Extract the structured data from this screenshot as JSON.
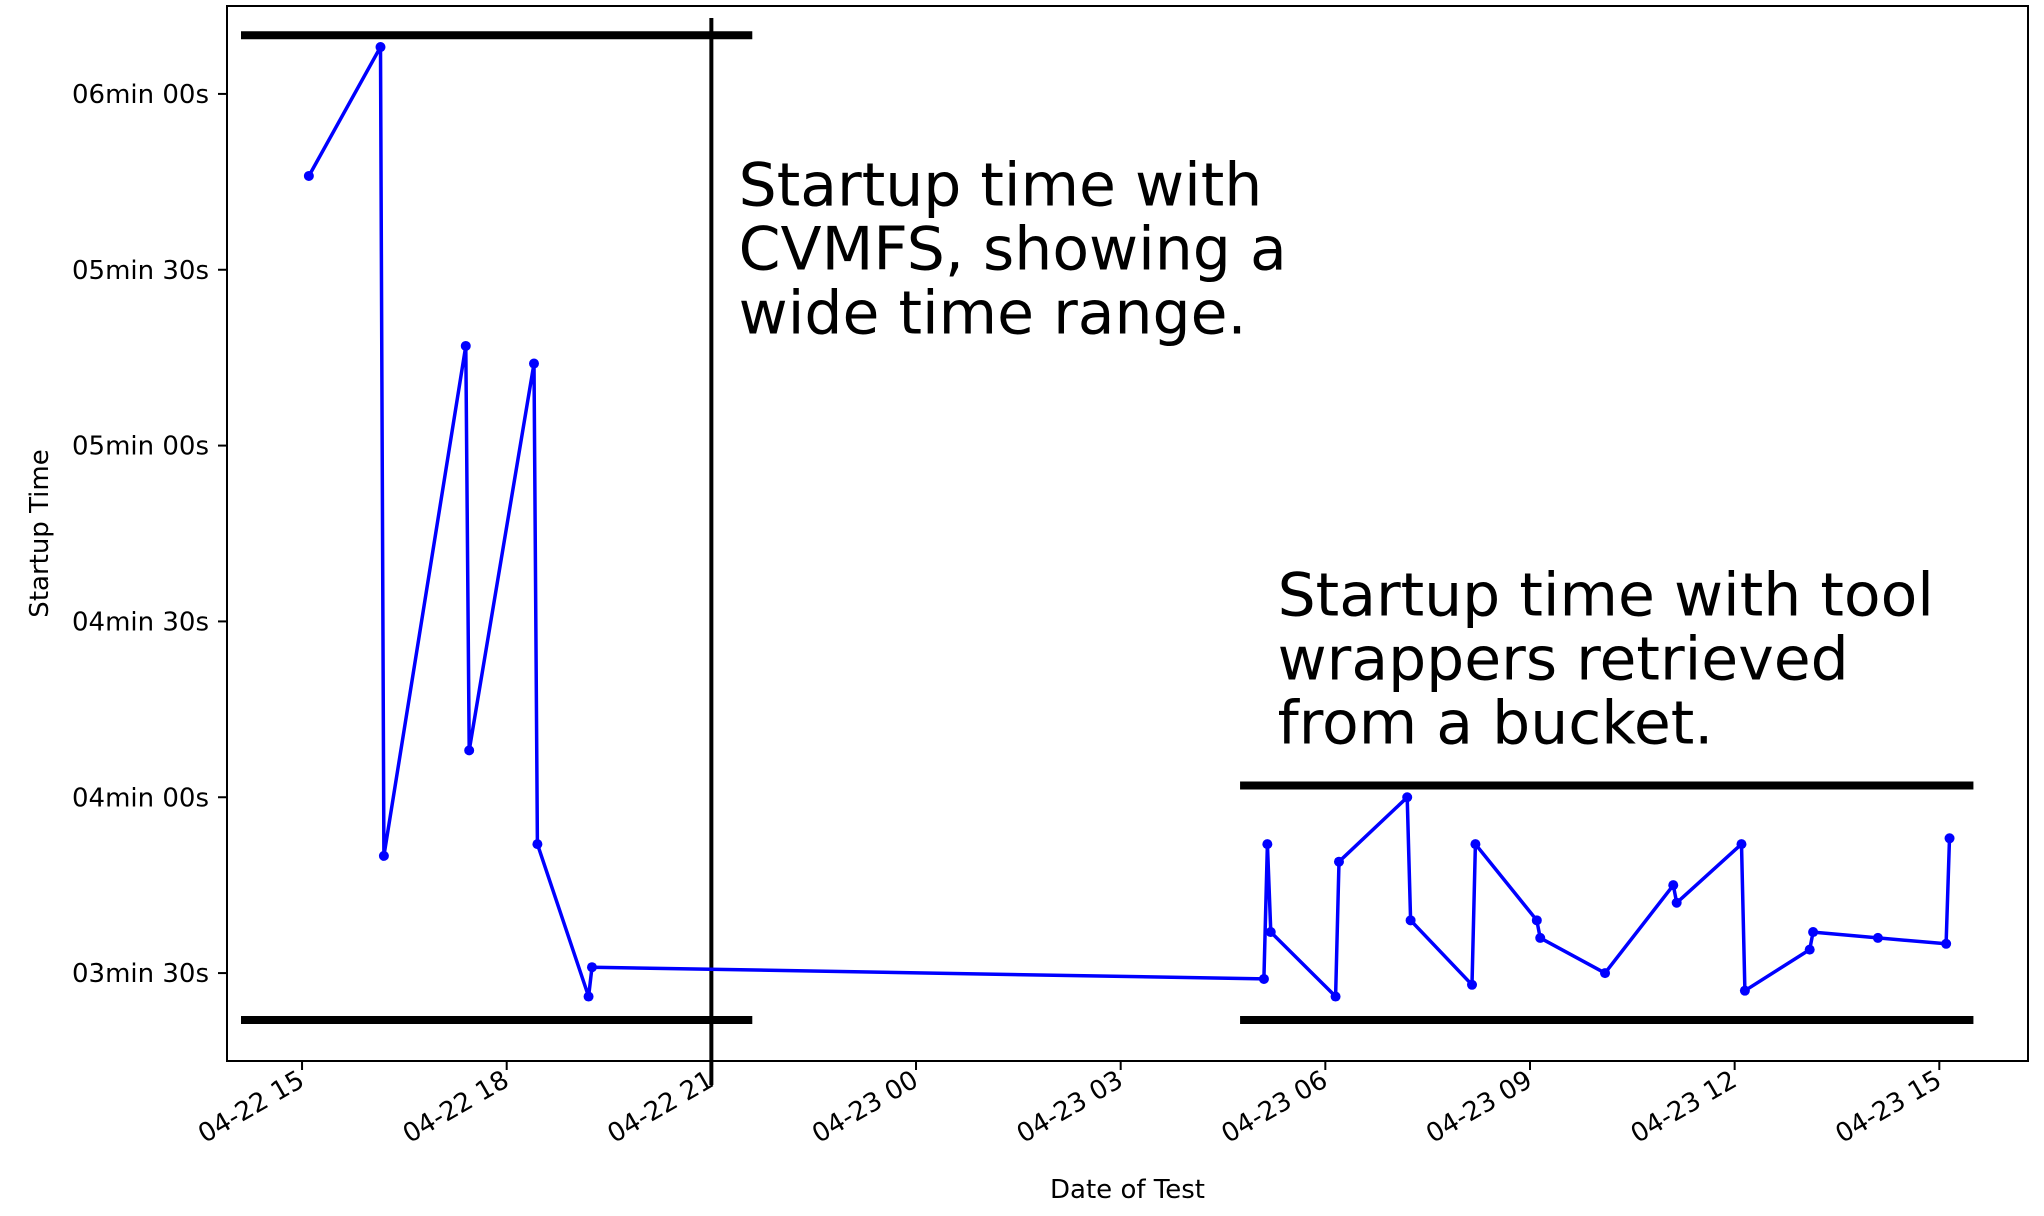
{
  "chart_data": {
    "type": "line",
    "title": "",
    "xlabel": "Date of Test",
    "ylabel": "Startup Time",
    "x_ticks": [
      "04-22 15",
      "04-22 18",
      "04-22 21",
      "04-23 00",
      "04-23 03",
      "04-23 06",
      "04-23 09",
      "04-23 12",
      "04-23 15"
    ],
    "x_tick_hours": [
      15,
      18,
      21,
      24,
      27,
      30,
      33,
      36,
      39
    ],
    "xlim_hours": [
      13.9,
      40.3
    ],
    "y_ticks": [
      "03min 30s",
      "04min 00s",
      "04min 30s",
      "05min 00s",
      "05min 30s",
      "06min 00s"
    ],
    "y_tick_seconds": [
      210,
      240,
      270,
      300,
      330,
      360
    ],
    "ylim_seconds": [
      195,
      375
    ],
    "x_unit_note": "hours counted from 04-22 00:00",
    "grid": false,
    "series": [
      {
        "color": "#0000ff",
        "x_hours": [
          15.1,
          16.15,
          16.2,
          17.4,
          17.45,
          18.4,
          18.45,
          19.2,
          19.25,
          29.1,
          29.15,
          29.2,
          30.15,
          30.2,
          31.2,
          31.25,
          32.15,
          32.2,
          33.1,
          33.15,
          34.1,
          35.1,
          35.15,
          36.1,
          36.15,
          37.1,
          37.15,
          38.1,
          39.1,
          39.15
        ],
        "y_seconds": [
          346,
          368,
          230,
          317,
          248,
          314,
          232,
          206,
          211,
          209,
          232,
          217,
          206,
          229,
          240,
          219,
          208,
          232,
          219,
          216,
          210,
          225,
          222,
          232,
          207,
          214,
          217,
          216,
          215,
          233
        ]
      }
    ],
    "reference_lines": {
      "vertical_hour": 21,
      "cvmfs_range": {
        "x_hours": [
          13.9,
          21.6
        ],
        "y_min_seconds": 202,
        "y_max_seconds": 370
      },
      "bucket_range": {
        "x_hours": [
          28.75,
          39.5
        ],
        "y_min_seconds": 202,
        "y_max_seconds": 242
      }
    },
    "annotations": [
      {
        "lines": [
          "Startup time with",
          "CVMFS, showing a",
          "wide time range."
        ],
        "x_hour": 21.4,
        "y_seconds": 341
      },
      {
        "lines": [
          "Startup time with tool",
          "wrappers retrieved",
          "from a bucket."
        ],
        "x_hour": 29.3,
        "y_seconds": 271
      }
    ]
  }
}
